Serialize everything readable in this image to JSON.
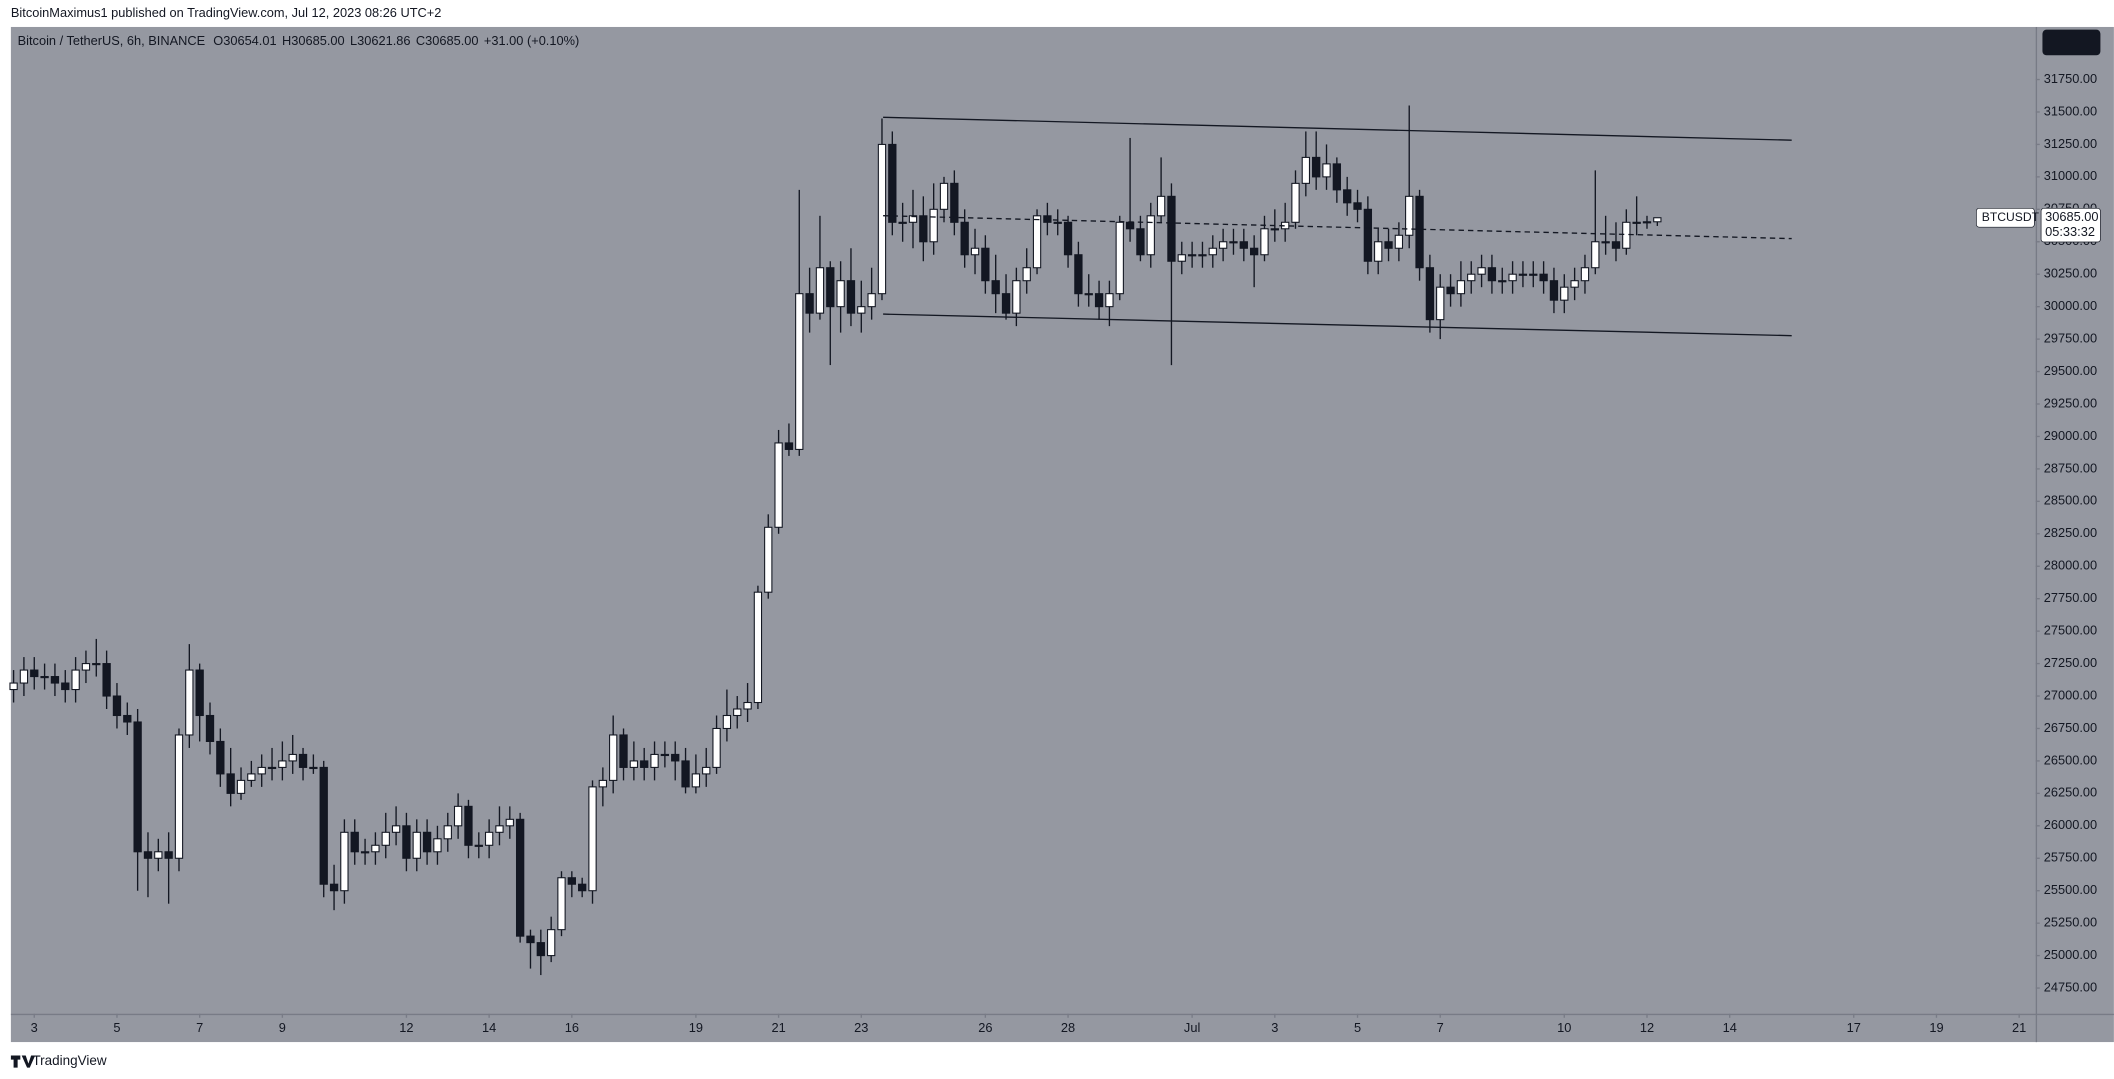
{
  "header": {
    "publisher": "BitcoinMaximus1 published on TradingView.com, Jul 12, 2023 08:26 UTC+2"
  },
  "footer": {
    "brand": "TradingView"
  },
  "chart_data": {
    "type": "candlestick",
    "title": "Bitcoin / TetherUS, 6h, BINANCE",
    "ohlc_legend": [
      {
        "key": "O",
        "text": "30654.01"
      },
      {
        "key": "H",
        "text": "30685.00"
      },
      {
        "key": "L",
        "text": "30621.86"
      },
      {
        "key": "C",
        "text": "30685.00"
      }
    ],
    "change": "+31.00 (+0.10%)",
    "last_price": {
      "symbol": "BTCUSDT",
      "value": 30685,
      "label": "30685.00",
      "countdown": "05:33:32"
    },
    "up_color": "#ffffff",
    "down_color": "#131722",
    "open": [
      27050,
      27100,
      27200,
      27150,
      27150,
      27100,
      27050,
      27200,
      27250,
      27250,
      27000,
      26850,
      26800,
      25800,
      25750,
      25800,
      25750,
      26700,
      27200,
      26850,
      26650,
      26400,
      26250,
      26350,
      26400,
      26450,
      26450,
      26500,
      26550,
      26450,
      26450,
      25550,
      25500,
      25950,
      25800,
      25800,
      25850,
      25950,
      26000,
      25750,
      25950,
      25800,
      25900,
      26000,
      26150,
      25850,
      25850,
      25950,
      26000,
      26050,
      25150,
      25100,
      25000,
      25200,
      25600,
      25550,
      25500,
      26300,
      26350,
      26700,
      26450,
      26500,
      26450,
      26550,
      26550,
      26500,
      26300,
      26400,
      26450,
      26750,
      26850,
      26900,
      26950,
      27800,
      28300,
      28950,
      28900,
      30100,
      29950,
      30300,
      30000,
      30200,
      29950,
      30000,
      30100,
      31250,
      30650,
      30650,
      30700,
      30500,
      30750,
      30950,
      30650,
      30400,
      30450,
      30200,
      30100,
      29950,
      30200,
      30300,
      30700,
      30650,
      30650,
      30400,
      30100,
      30100,
      30000,
      30100,
      30650,
      30600,
      30400,
      30700,
      30850,
      30350,
      30400,
      30400,
      30400,
      30450,
      30500,
      30500,
      30450,
      30400,
      30600,
      30600,
      30650,
      30950,
      31150,
      31000,
      31100,
      30900,
      30800,
      30750,
      30350,
      30500,
      30450,
      30550,
      30850,
      30300,
      29900,
      30150,
      30100,
      30200,
      30250,
      30300,
      30200,
      30200,
      30250,
      30250,
      30250,
      30200,
      30050,
      30150,
      30200,
      30300,
      30500,
      30500,
      30450,
      30650,
      30650,
      30654.01
    ],
    "high": [
      27200,
      27300,
      27300,
      27250,
      27250,
      27200,
      27300,
      27350,
      27440,
      27350,
      27100,
      26950,
      26900,
      25950,
      25900,
      25950,
      26750,
      27400,
      27250,
      26950,
      26750,
      26600,
      26450,
      26500,
      26550,
      26600,
      26650,
      26700,
      26600,
      26550,
      26500,
      25700,
      26050,
      26050,
      25900,
      25950,
      26100,
      26150,
      26100,
      26050,
      26050,
      26000,
      26100,
      26250,
      26200,
      25950,
      26050,
      26150,
      26150,
      26100,
      25200,
      25200,
      25300,
      25650,
      25650,
      25600,
      26350,
      26450,
      26850,
      26750,
      26650,
      26600,
      26650,
      26650,
      26650,
      26600,
      26550,
      26600,
      26850,
      27050,
      27000,
      27100,
      27850,
      28400,
      29050,
      29100,
      30900,
      30300,
      30700,
      30350,
      30350,
      30450,
      30200,
      30300,
      31450,
      31350,
      30800,
      30900,
      30850,
      30950,
      31000,
      31050,
      30750,
      30600,
      30550,
      30400,
      30250,
      30300,
      30450,
      30750,
      30800,
      30750,
      30700,
      30500,
      30250,
      30200,
      30200,
      30700,
      31300,
      30700,
      30800,
      31150,
      30950,
      30500,
      30500,
      30500,
      30550,
      30600,
      30600,
      30600,
      30550,
      30700,
      30750,
      30800,
      31050,
      31350,
      31350,
      31250,
      31150,
      31000,
      30900,
      30850,
      30600,
      30600,
      30650,
      31550,
      30900,
      30400,
      30250,
      30250,
      30350,
      30350,
      30400,
      30400,
      30300,
      30350,
      30350,
      30350,
      30350,
      30300,
      30250,
      30300,
      30400,
      31050,
      30700,
      30650,
      30750,
      30850,
      30700,
      30685
    ],
    "low": [
      26950,
      27000,
      27050,
      27050,
      27000,
      26950,
      26950,
      27100,
      27150,
      26900,
      26750,
      26700,
      25500,
      25450,
      25650,
      25400,
      25650,
      26600,
      26650,
      26550,
      26300,
      26150,
      26200,
      26300,
      26300,
      26350,
      26350,
      26400,
      26350,
      26400,
      25450,
      25350,
      25400,
      25700,
      25700,
      25700,
      25750,
      25850,
      25650,
      25650,
      25700,
      25700,
      25800,
      25900,
      25750,
      25750,
      25750,
      25850,
      25900,
      25100,
      24900,
      24850,
      24950,
      25150,
      25450,
      25450,
      25400,
      26150,
      26250,
      26350,
      26350,
      26350,
      26350,
      26450,
      26350,
      26250,
      26250,
      26300,
      26400,
      26650,
      26750,
      26800,
      26900,
      27750,
      28250,
      28850,
      28850,
      29800,
      29900,
      29550,
      29800,
      29850,
      29800,
      29900,
      30050,
      30550,
      30500,
      30450,
      30350,
      30400,
      30650,
      30550,
      30300,
      30250,
      30100,
      29950,
      29900,
      29850,
      30100,
      30250,
      30550,
      30550,
      30300,
      30000,
      30000,
      29900,
      29850,
      30050,
      30500,
      30350,
      30300,
      30650,
      29550,
      30250,
      30300,
      30300,
      30300,
      30350,
      30400,
      30350,
      30150,
      30350,
      30500,
      30500,
      30600,
      30850,
      30900,
      30900,
      30800,
      30700,
      30650,
      30250,
      30250,
      30350,
      30350,
      30450,
      30200,
      29800,
      29750,
      30000,
      30000,
      30100,
      30150,
      30100,
      30100,
      30100,
      30150,
      30150,
      30100,
      29950,
      29950,
      30050,
      30100,
      30250,
      30400,
      30350,
      30400,
      30550,
      30600,
      30621.86
    ],
    "close": [
      27100,
      27200,
      27150,
      27150,
      27100,
      27050,
      27200,
      27250,
      27250,
      27000,
      26850,
      26800,
      25800,
      25750,
      25800,
      25750,
      26700,
      27200,
      26850,
      26650,
      26400,
      26250,
      26350,
      26400,
      26450,
      26450,
      26500,
      26550,
      26450,
      26450,
      25550,
      25500,
      25950,
      25800,
      25800,
      25850,
      25950,
      26000,
      25750,
      25950,
      25800,
      25900,
      26000,
      26150,
      25850,
      25850,
      25950,
      26000,
      26050,
      25150,
      25100,
      25000,
      25200,
      25600,
      25550,
      25500,
      26300,
      26350,
      26700,
      26450,
      26500,
      26450,
      26550,
      26550,
      26500,
      26300,
      26400,
      26450,
      26750,
      26850,
      26900,
      26950,
      27800,
      28300,
      28950,
      28900,
      30100,
      29950,
      30300,
      30000,
      30200,
      29950,
      30000,
      30100,
      31250,
      30650,
      30650,
      30700,
      30500,
      30750,
      30950,
      30650,
      30400,
      30450,
      30200,
      30100,
      29950,
      30200,
      30300,
      30700,
      30650,
      30650,
      30400,
      30100,
      30100,
      30000,
      30100,
      30650,
      30600,
      30400,
      30700,
      30850,
      30350,
      30400,
      30400,
      30400,
      30450,
      30500,
      30500,
      30450,
      30400,
      30600,
      30600,
      30650,
      30950,
      31150,
      31000,
      31100,
      30900,
      30800,
      30750,
      30350,
      30500,
      30450,
      30550,
      30850,
      30300,
      29900,
      30150,
      30100,
      30200,
      30250,
      30300,
      30200,
      30200,
      30250,
      30250,
      30250,
      30200,
      30050,
      30150,
      30200,
      30300,
      30500,
      30500,
      30450,
      30650,
      30650,
      30654.01,
      30685
    ],
    "xlim": [
      -0.26,
      195.6
    ],
    "xticks": [
      {
        "value": 2,
        "label": "3"
      },
      {
        "value": 10,
        "label": "5"
      },
      {
        "value": 18,
        "label": "7"
      },
      {
        "value": 26,
        "label": "9"
      },
      {
        "value": 38,
        "label": "12"
      },
      {
        "value": 46,
        "label": "14"
      },
      {
        "value": 54,
        "label": "16"
      },
      {
        "value": 66,
        "label": "19"
      },
      {
        "value": 74,
        "label": "21"
      },
      {
        "value": 82,
        "label": "23"
      },
      {
        "value": 94,
        "label": "26"
      },
      {
        "value": 102,
        "label": "28"
      },
      {
        "value": 114,
        "label": "Jul"
      },
      {
        "value": 122,
        "label": "3"
      },
      {
        "value": 130,
        "label": "5"
      },
      {
        "value": 138,
        "label": "7"
      },
      {
        "value": 150,
        "label": "10"
      },
      {
        "value": 158,
        "label": "12"
      },
      {
        "value": 166,
        "label": "14"
      },
      {
        "value": 178,
        "label": "17"
      },
      {
        "value": 186,
        "label": "19"
      },
      {
        "value": 194,
        "label": "21"
      }
    ],
    "ylim": [
      24552,
      32155
    ],
    "yticks": [
      {
        "value": 24750,
        "label": "24750.00"
      },
      {
        "value": 25000,
        "label": "25000.00"
      },
      {
        "value": 25250,
        "label": "25250.00"
      },
      {
        "value": 25500,
        "label": "25500.00"
      },
      {
        "value": 25750,
        "label": "25750.00"
      },
      {
        "value": 26000,
        "label": "26000.00"
      },
      {
        "value": 26250,
        "label": "26250.00"
      },
      {
        "value": 26500,
        "label": "26500.00"
      },
      {
        "value": 26750,
        "label": "26750.00"
      },
      {
        "value": 27000,
        "label": "27000.00"
      },
      {
        "value": 27250,
        "label": "27250.00"
      },
      {
        "value": 27500,
        "label": "27500.00"
      },
      {
        "value": 27750,
        "label": "27750.00"
      },
      {
        "value": 28000,
        "label": "28000.00"
      },
      {
        "value": 28250,
        "label": "28250.00"
      },
      {
        "value": 28500,
        "label": "28500.00"
      },
      {
        "value": 28750,
        "label": "28750.00"
      },
      {
        "value": 29000,
        "label": "29000.00"
      },
      {
        "value": 29250,
        "label": "29250.00"
      },
      {
        "value": 29500,
        "label": "29500.00"
      },
      {
        "value": 29750,
        "label": "29750.00"
      },
      {
        "value": 30000,
        "label": "30000.00"
      },
      {
        "value": 30250,
        "label": "30250.00"
      },
      {
        "value": 30500,
        "label": "30500.00"
      },
      {
        "value": 30750,
        "label": "30750.00"
      },
      {
        "value": 31000,
        "label": "31000.00"
      },
      {
        "value": 31250,
        "label": "31250.00"
      },
      {
        "value": 31500,
        "label": "31500.00"
      },
      {
        "value": 31750,
        "label": "31750.00"
      }
    ],
    "grid": false
  }
}
